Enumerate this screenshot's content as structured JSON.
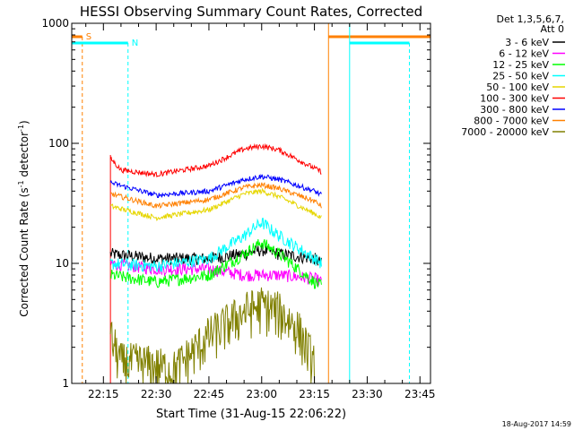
{
  "chart_data": {
    "type": "line",
    "title": "HESSI Observing Summary Count Rates, Corrected",
    "xlabel": "Start Time (31-Aug-15 22:06:22)",
    "ylabel": "Corrected Count Rate (s",
    "ylabel_sup": "-1",
    "ylabel_mid": " detector",
    "ylabel_end": ")",
    "y_scale": "log",
    "ylim": [
      1,
      1000
    ],
    "xlim": [
      "22:06",
      "23:48"
    ],
    "x_ticks": [
      "22:15",
      "22:30",
      "22:45",
      "23:00",
      "23:15",
      "23:30",
      "23:45"
    ],
    "y_ticks": [
      "1",
      "10",
      "100",
      "1000"
    ],
    "legend": {
      "placement": "right",
      "header_lines": [
        "Det 1,3,5,6,7,",
        "Att 0"
      ],
      "entries": [
        {
          "label": "3 - 6 keV",
          "color": "#000000"
        },
        {
          "label": "6 - 12 keV",
          "color": "#ff00ff"
        },
        {
          "label": "12 - 25 keV",
          "color": "#00ff00"
        },
        {
          "label": "25 - 50 keV",
          "color": "#00ffff"
        },
        {
          "label": "50 - 100 keV",
          "color": "#e6d600"
        },
        {
          "label": "100 - 300 keV",
          "color": "#ff0000"
        },
        {
          "label": "300 - 800 keV",
          "color": "#0000ff"
        },
        {
          "label": "800 - 7000 keV",
          "color": "#ff8000"
        },
        {
          "label": "7000 - 20000 keV",
          "color": "#808000"
        }
      ]
    },
    "flag_labels": {
      "saa": "S",
      "night": "N"
    },
    "series": [
      {
        "name": "3 - 6 keV",
        "color": "#000000",
        "x": [
          "22:17",
          "22:30",
          "22:45",
          "22:55",
          "23:00",
          "23:05",
          "23:15",
          "23:17"
        ],
        "values": [
          12,
          11,
          11,
          12,
          13,
          12,
          11,
          10
        ]
      },
      {
        "name": "6 - 12 keV",
        "color": "#ff00ff",
        "x": [
          "22:17",
          "22:30",
          "22:45",
          "22:55",
          "23:00",
          "23:05",
          "23:15",
          "23:17"
        ],
        "values": [
          10,
          9,
          9,
          8,
          8,
          8,
          7.5,
          7
        ]
      },
      {
        "name": "12 - 25 keV",
        "color": "#00ff00",
        "x": [
          "22:17",
          "22:30",
          "22:45",
          "22:55",
          "23:00",
          "23:05",
          "23:15",
          "23:17"
        ],
        "values": [
          8,
          7,
          8,
          12,
          15,
          12,
          7,
          6.5
        ]
      },
      {
        "name": "25 - 50 keV",
        "color": "#00ffff",
        "x": [
          "22:17",
          "22:30",
          "22:45",
          "22:55",
          "23:00",
          "23:05",
          "23:15",
          "23:17"
        ],
        "values": [
          10,
          9.5,
          11,
          17,
          22,
          17,
          11,
          10
        ]
      },
      {
        "name": "50 - 100 keV",
        "color": "#e6d600",
        "x": [
          "22:17",
          "22:30",
          "22:45",
          "22:55",
          "23:00",
          "23:05",
          "23:15",
          "23:17"
        ],
        "values": [
          30,
          24,
          28,
          38,
          40,
          36,
          26,
          24
        ]
      },
      {
        "name": "100 - 300 keV",
        "color": "#ff0000",
        "x": [
          "22:17",
          "22:20",
          "22:30",
          "22:45",
          "22:55",
          "23:00",
          "23:05",
          "23:15",
          "23:17"
        ],
        "values": [
          75,
          60,
          55,
          65,
          90,
          95,
          88,
          62,
          58
        ]
      },
      {
        "name": "300 - 800 keV",
        "color": "#0000ff",
        "x": [
          "22:17",
          "22:30",
          "22:45",
          "22:55",
          "23:00",
          "23:05",
          "23:15",
          "23:17"
        ],
        "values": [
          47,
          37,
          40,
          50,
          53,
          50,
          40,
          37
        ]
      },
      {
        "name": "800 - 7000 keV",
        "color": "#ff8000",
        "x": [
          "22:17",
          "22:30",
          "22:45",
          "22:55",
          "23:00",
          "23:05",
          "23:15",
          "23:17"
        ],
        "values": [
          38,
          30,
          34,
          43,
          45,
          42,
          33,
          30
        ]
      },
      {
        "name": "7000 - 20000 keV",
        "color": "#808000",
        "x": [
          "22:17",
          "22:20",
          "22:25",
          "22:35",
          "22:45",
          "22:55",
          "23:00",
          "23:05",
          "23:10",
          "23:15"
        ],
        "values": [
          2.5,
          1.5,
          1.5,
          1.3,
          2.5,
          4,
          4.5,
          4,
          3,
          1.5
        ]
      }
    ],
    "markers": [
      {
        "kind": "saa_flag",
        "color": "#ff8000",
        "x_start": "22:06",
        "x_end": "22:09"
      },
      {
        "kind": "saa_flag",
        "color": "#ff8000",
        "x_start": "23:19",
        "x_end": "23:48"
      },
      {
        "kind": "night_flag",
        "color": "#00ffff",
        "x_start": "22:06",
        "x_end": "22:22"
      },
      {
        "kind": "night_flag",
        "color": "#00ffff",
        "x_start": "23:25",
        "x_end": "23:42"
      }
    ],
    "data_gaps": [
      {
        "x_start": "22:06",
        "x_end": "22:17"
      },
      {
        "x_start": "23:17",
        "x_end": "23:48"
      }
    ]
  },
  "footer": {
    "timestamp": "18-Aug-2017 14:59"
  }
}
